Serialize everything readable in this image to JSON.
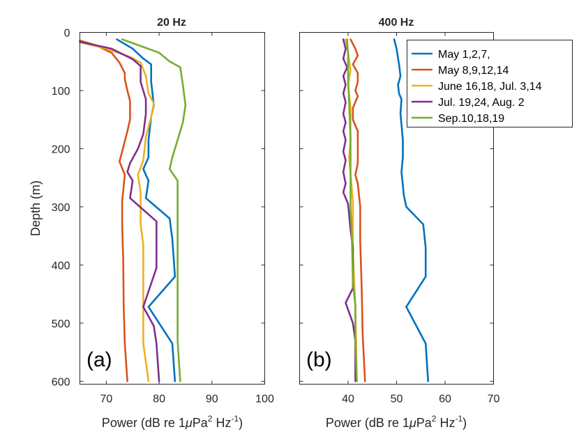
{
  "chart_data": [
    {
      "type": "line",
      "panel_tag": "(a)",
      "title": "20 Hz",
      "xlabel": "Power (dB re 1μPa² Hz⁻¹)",
      "xlabel_parts": {
        "pre": "Power (dB re 1",
        "mu": "μ",
        "pa": "Pa",
        "sup1": "2",
        "hz": " Hz",
        "sup2": "-1",
        "post": ")"
      },
      "ylabel": "Depth (m)",
      "xlim": [
        65,
        100
      ],
      "ylim": [
        605,
        0
      ],
      "xticks": [
        70,
        80,
        90,
        100
      ],
      "yticks": [
        0,
        100,
        200,
        300,
        400,
        500,
        600
      ],
      "series": [
        {
          "name": "May 1,2,7,",
          "color": "#0072BD",
          "points": [
            [
              72,
              12
            ],
            [
              75,
              28
            ],
            [
              77,
              45
            ],
            [
              78.5,
              55
            ],
            [
              78.5,
              85
            ],
            [
              79,
              125
            ],
            [
              78.5,
              145
            ],
            [
              78,
              185
            ],
            [
              78,
              215
            ],
            [
              77,
              235
            ],
            [
              78,
              255
            ],
            [
              77.5,
              285
            ],
            [
              82,
              320
            ],
            [
              82.5,
              355
            ],
            [
              83,
              420
            ],
            [
              78,
              472
            ],
            [
              82.5,
              535
            ],
            [
              83,
              600
            ]
          ]
        },
        {
          "name": "May 8,9,12,14",
          "color": "#D95319",
          "points": [
            [
              65,
              14
            ],
            [
              68,
              22
            ],
            [
              71,
              35
            ],
            [
              72.5,
              52
            ],
            [
              73.5,
              70
            ],
            [
              73.5,
              80
            ],
            [
              74,
              100
            ],
            [
              74.5,
              118
            ],
            [
              74.5,
              150
            ],
            [
              74,
              170
            ],
            [
              73,
              205
            ],
            [
              72.5,
              222
            ],
            [
              73.5,
              245
            ],
            [
              73,
              290
            ],
            [
              73,
              330
            ],
            [
              73.2,
              390
            ],
            [
              73.3,
              470
            ],
            [
              73.5,
              535
            ],
            [
              74,
              600
            ]
          ]
        },
        {
          "name": "June 16,18, Jul. 3,14",
          "color": "#EDB120",
          "points": [
            [
              65,
              17
            ],
            [
              70,
              28
            ],
            [
              74.5,
              42
            ],
            [
              76.5,
              52
            ],
            [
              77.5,
              75
            ],
            [
              78,
              105
            ],
            [
              79,
              122
            ],
            [
              78.5,
              145
            ],
            [
              77.5,
              180
            ],
            [
              77,
              220
            ],
            [
              76,
              245
            ],
            [
              76.5,
              275
            ],
            [
              76.5,
              330
            ],
            [
              77,
              365
            ],
            [
              77,
              460
            ],
            [
              77,
              535
            ],
            [
              78,
              600
            ]
          ]
        },
        {
          "name": "Jul. 19,24, Aug. 2",
          "color": "#7E2F8E",
          "points": [
            [
              65,
              16
            ],
            [
              71,
              28
            ],
            [
              75,
              46
            ],
            [
              76.5,
              58
            ],
            [
              76.5,
              85
            ],
            [
              77.5,
              115
            ],
            [
              77.5,
              140
            ],
            [
              77,
              175
            ],
            [
              76,
              200
            ],
            [
              74.5,
              225
            ],
            [
              74,
              240
            ],
            [
              75,
              255
            ],
            [
              74.5,
              285
            ],
            [
              79.5,
              325
            ],
            [
              79.5,
              405
            ],
            [
              77,
              472
            ],
            [
              79,
              505
            ],
            [
              79.5,
              535
            ],
            [
              80,
              600
            ]
          ]
        },
        {
          "name": "Sep.10,18,19",
          "color": "#77AC30",
          "points": [
            [
              73,
              12
            ],
            [
              77,
              25
            ],
            [
              80,
              35
            ],
            [
              82,
              50
            ],
            [
              84,
              60
            ],
            [
              84.5,
              90
            ],
            [
              85,
              125
            ],
            [
              84.5,
              155
            ],
            [
              83.5,
              185
            ],
            [
              82.5,
              215
            ],
            [
              82,
              235
            ],
            [
              83.5,
              255
            ],
            [
              83.5,
              370
            ],
            [
              83.5,
              440
            ],
            [
              83.5,
              530
            ],
            [
              84,
              600
            ]
          ]
        }
      ]
    },
    {
      "type": "line",
      "panel_tag": "(b)",
      "title": "400 Hz",
      "xlabel": "Power (dB re 1μPa² Hz⁻¹)",
      "xlabel_parts": {
        "pre": "Power (dB re 1",
        "mu": "μ",
        "pa": "Pa",
        "sup1": "2",
        "hz": " Hz",
        "sup2": "-1",
        "post": ")"
      },
      "xlim": [
        30,
        70
      ],
      "ylim": [
        605,
        0
      ],
      "xticks": [
        40,
        50,
        60,
        70
      ],
      "yticks": [
        0,
        100,
        200,
        300,
        400,
        500,
        600
      ],
      "series": [
        {
          "name": "May 1,2,7,",
          "color": "#0072BD",
          "points": [
            [
              49.5,
              12
            ],
            [
              50,
              28
            ],
            [
              50.5,
              55
            ],
            [
              50.8,
              75
            ],
            [
              50.3,
              90
            ],
            [
              50.5,
              105
            ],
            [
              51,
              115
            ],
            [
              50.8,
              140
            ],
            [
              51.3,
              185
            ],
            [
              51.3,
              215
            ],
            [
              51,
              240
            ],
            [
              51.5,
              280
            ],
            [
              52,
              300
            ],
            [
              55.5,
              330
            ],
            [
              56,
              370
            ],
            [
              56,
              420
            ],
            [
              52,
              472
            ],
            [
              56,
              535
            ],
            [
              56.5,
              600
            ]
          ]
        },
        {
          "name": "May 8,9,12,14",
          "color": "#D95319",
          "points": [
            [
              40.5,
              12
            ],
            [
              41.5,
              28
            ],
            [
              42,
              40
            ],
            [
              41,
              55
            ],
            [
              42,
              70
            ],
            [
              42,
              85
            ],
            [
              41.5,
              100
            ],
            [
              42,
              110
            ],
            [
              41,
              130
            ],
            [
              41,
              150
            ],
            [
              42,
              170
            ],
            [
              42,
              205
            ],
            [
              42,
              225
            ],
            [
              41.5,
              245
            ],
            [
              42,
              260
            ],
            [
              42.5,
              300
            ],
            [
              42.5,
              360
            ],
            [
              42.8,
              440
            ],
            [
              43,
              520
            ],
            [
              43.5,
              600
            ]
          ]
        },
        {
          "name": "June 16,18, Jul. 3,14",
          "color": "#EDB120",
          "points": [
            [
              39.5,
              12
            ],
            [
              40,
              35
            ],
            [
              40.5,
              65
            ],
            [
              40,
              90
            ],
            [
              40.5,
              130
            ],
            [
              40.5,
              185
            ],
            [
              40.2,
              215
            ],
            [
              40.5,
              245
            ],
            [
              41,
              290
            ],
            [
              41,
              380
            ],
            [
              41.5,
              470
            ],
            [
              41.8,
              600
            ]
          ]
        },
        {
          "name": "Jul. 19,24, Aug. 2",
          "color": "#7E2F8E",
          "points": [
            [
              39,
              12
            ],
            [
              39.5,
              28
            ],
            [
              39,
              45
            ],
            [
              39.8,
              60
            ],
            [
              39,
              75
            ],
            [
              39.5,
              90
            ],
            [
              39,
              105
            ],
            [
              39.5,
              120
            ],
            [
              39,
              140
            ],
            [
              39.5,
              155
            ],
            [
              39,
              170
            ],
            [
              39.5,
              185
            ],
            [
              39,
              205
            ],
            [
              39.5,
              220
            ],
            [
              39,
              240
            ],
            [
              39.5,
              260
            ],
            [
              39,
              275
            ],
            [
              40,
              295
            ],
            [
              40.5,
              340
            ],
            [
              41,
              370
            ],
            [
              41,
              440
            ],
            [
              39.5,
              465
            ],
            [
              41,
              500
            ],
            [
              41.5,
              530
            ],
            [
              41.5,
              600
            ]
          ]
        },
        {
          "name": "Sep.10,18,19",
          "color": "#77AC30",
          "points": [
            [
              39.8,
              12
            ],
            [
              40,
              40
            ],
            [
              40,
              80
            ],
            [
              40.3,
              140
            ],
            [
              40.5,
              185
            ],
            [
              40.5,
              230
            ],
            [
              40.5,
              300
            ],
            [
              40.8,
              360
            ],
            [
              41,
              430
            ],
            [
              41.5,
              470
            ],
            [
              41.5,
              530
            ],
            [
              41.8,
              600
            ]
          ]
        }
      ]
    }
  ]
}
